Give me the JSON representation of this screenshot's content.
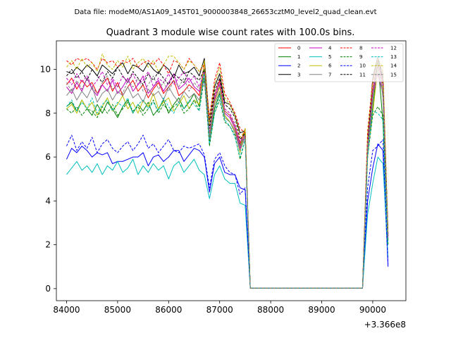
{
  "figure": {
    "suptitle": "Data file: modeM0/AS1A09_145T01_9000003848_26653cztM0_level2_quad_clean.evt",
    "title": "Quadrant 3 module wise count rates with 100.0s bins."
  },
  "chart_data": {
    "type": "line",
    "title": "Quadrant 3 module wise count rates with 100.0s bins.",
    "xlabel": "",
    "ylabel": "",
    "x_offset_label": "+3.366e8",
    "xlim": [
      83800,
      90650
    ],
    "ylim": [
      -0.55,
      11.3
    ],
    "xticks": [
      84000,
      85000,
      86000,
      87000,
      88000,
      89000,
      90000
    ],
    "xtick_labels": [
      "84000",
      "85000",
      "86000",
      "87000",
      "88000",
      "89000",
      "90000"
    ],
    "yticks": [
      0,
      2,
      4,
      6,
      8,
      10
    ],
    "ytick_labels": [
      "0",
      "2",
      "4",
      "6",
      "8",
      "10"
    ],
    "grid": false,
    "legend_position": "top-right",
    "legend_columns": 4,
    "x": [
      84000,
      84100,
      84200,
      84300,
      84400,
      84500,
      84600,
      84700,
      84800,
      84900,
      85000,
      85100,
      85200,
      85300,
      85400,
      85500,
      85600,
      85700,
      85800,
      85900,
      86000,
      86100,
      86200,
      86300,
      86400,
      86500,
      86600,
      86700,
      86800,
      86900,
      87000,
      87100,
      87200,
      87300,
      87400,
      87500,
      87600,
      87700,
      87800,
      87900,
      88000,
      88100,
      88200,
      88300,
      88400,
      88500,
      88600,
      88700,
      88800,
      88900,
      89000,
      89100,
      89200,
      89300,
      89400,
      89500,
      89600,
      89700,
      89800,
      89900,
      90000,
      90100,
      90200,
      90300
    ],
    "series": [
      {
        "name": "0",
        "color": "#ff0000",
        "dash": "solid",
        "values": [
          9.3,
          9.6,
          9.1,
          9.5,
          9.2,
          9.4,
          8.9,
          9.3,
          9.6,
          9.0,
          9.4,
          8.8,
          9.2,
          9.5,
          9.0,
          9.3,
          8.7,
          9.1,
          9.4,
          8.9,
          9.2,
          9.5,
          8.8,
          9.0,
          9.3,
          9.1,
          8.8,
          10.3,
          7.0,
          8.8,
          9.5,
          8.1,
          7.9,
          7.4,
          6.6,
          7.3,
          0.02,
          0.02,
          0.02,
          0.02,
          0.02,
          0.02,
          0.02,
          0.02,
          0.02,
          0.02,
          0.02,
          0.02,
          0.02,
          0.02,
          0.02,
          0.02,
          0.02,
          0.02,
          0.02,
          0.02,
          0.02,
          0.02,
          0.02,
          6.8,
          9.0,
          10.4,
          9.3,
          2.4
        ]
      },
      {
        "name": "1",
        "color": "#008000",
        "dash": "solid",
        "values": [
          8.3,
          8.5,
          8.1,
          8.6,
          8.2,
          7.9,
          8.4,
          8.0,
          8.5,
          8.2,
          7.8,
          8.3,
          8.6,
          8.0,
          8.4,
          8.1,
          8.5,
          7.9,
          8.2,
          8.6,
          8.0,
          8.4,
          8.7,
          8.2,
          8.5,
          8.9,
          8.3,
          10.0,
          6.6,
          8.2,
          8.9,
          7.9,
          7.6,
          7.2,
          6.5,
          7.1,
          0.02,
          0.02,
          0.02,
          0.02,
          0.02,
          0.02,
          0.02,
          0.02,
          0.02,
          0.02,
          0.02,
          0.02,
          0.02,
          0.02,
          0.02,
          0.02,
          0.02,
          0.02,
          0.02,
          0.02,
          0.02,
          0.02,
          0.02,
          6.3,
          8.2,
          10.4,
          7.6,
          2.0
        ]
      },
      {
        "name": "2",
        "color": "#0000ff",
        "dash": "solid",
        "values": [
          5.9,
          6.4,
          6.2,
          6.5,
          6.3,
          6.0,
          6.2,
          6.1,
          6.2,
          5.7,
          5.8,
          5.8,
          5.9,
          6.0,
          6.0,
          6.2,
          5.6,
          6.0,
          6.1,
          5.8,
          6.0,
          6.3,
          6.3,
          5.8,
          6.1,
          6.4,
          6.3,
          6.0,
          4.4,
          5.7,
          6.0,
          5.3,
          5.2,
          5.2,
          4.6,
          4.5,
          0.02,
          0.02,
          0.02,
          0.02,
          0.02,
          0.02,
          0.02,
          0.02,
          0.02,
          0.02,
          0.02,
          0.02,
          0.02,
          0.02,
          0.02,
          0.02,
          0.02,
          0.02,
          0.02,
          0.02,
          0.02,
          0.02,
          0.02,
          4.0,
          5.5,
          6.6,
          6.3,
          1.0
        ]
      },
      {
        "name": "3",
        "color": "#000000",
        "dash": "solid",
        "values": [
          9.9,
          9.8,
          10.1,
          9.9,
          10.2,
          10.0,
          9.7,
          10.2,
          10.0,
          9.8,
          10.1,
          10.3,
          9.8,
          10.2,
          10.1,
          9.9,
          10.3,
          10.0,
          9.8,
          10.2,
          10.0,
          9.6,
          10.2,
          9.8,
          9.9,
          10.1,
          9.7,
          10.5,
          7.6,
          9.2,
          9.8,
          8.5,
          8.4,
          7.9,
          7.1,
          7.2,
          0.02,
          0.02,
          0.02,
          0.02,
          0.02,
          0.02,
          0.02,
          0.02,
          0.02,
          0.02,
          0.02,
          0.02,
          0.02,
          0.02,
          0.02,
          0.02,
          0.02,
          0.02,
          0.02,
          0.02,
          0.02,
          0.02,
          0.02,
          6.6,
          9.6,
          10.6,
          9.5,
          2.5
        ]
      },
      {
        "name": "4",
        "color": "#c000c0",
        "dash": "solid",
        "values": [
          9.2,
          8.9,
          9.4,
          9.0,
          9.6,
          9.1,
          8.8,
          9.3,
          9.0,
          9.5,
          8.9,
          9.2,
          9.6,
          9.0,
          9.3,
          9.7,
          8.9,
          9.2,
          9.5,
          9.0,
          9.4,
          9.8,
          9.1,
          9.3,
          9.6,
          9.2,
          9.0,
          9.5,
          7.0,
          8.6,
          9.3,
          8.0,
          7.8,
          7.3,
          6.4,
          7.0,
          0.02,
          0.02,
          0.02,
          0.02,
          0.02,
          0.02,
          0.02,
          0.02,
          0.02,
          0.02,
          0.02,
          0.02,
          0.02,
          0.02,
          0.02,
          0.02,
          0.02,
          0.02,
          0.02,
          0.02,
          0.02,
          0.02,
          0.02,
          6.4,
          8.8,
          9.8,
          8.9,
          2.3
        ]
      },
      {
        "name": "5",
        "color": "#00bfbf",
        "dash": "solid",
        "values": [
          5.2,
          5.5,
          5.8,
          5.4,
          5.6,
          5.3,
          5.7,
          5.2,
          5.6,
          5.4,
          5.8,
          5.3,
          5.5,
          5.9,
          5.2,
          5.6,
          5.3,
          5.7,
          5.4,
          5.6,
          5.0,
          5.6,
          5.8,
          5.3,
          5.6,
          5.9,
          5.4,
          5.2,
          4.1,
          5.2,
          5.6,
          5.0,
          4.8,
          4.8,
          3.9,
          3.8,
          0.02,
          0.02,
          0.02,
          0.02,
          0.02,
          0.02,
          0.02,
          0.02,
          0.02,
          0.02,
          0.02,
          0.02,
          0.02,
          0.02,
          0.02,
          0.02,
          0.02,
          0.02,
          0.02,
          0.02,
          0.02,
          0.02,
          0.02,
          3.4,
          4.8,
          6.0,
          5.7,
          1.4
        ]
      },
      {
        "name": "6",
        "color": "#bfbf00",
        "dash": "solid",
        "values": [
          8.2,
          8.4,
          8.0,
          8.6,
          8.2,
          8.5,
          7.9,
          8.3,
          8.7,
          8.1,
          8.4,
          8.8,
          8.2,
          8.5,
          8.0,
          8.6,
          8.3,
          8.9,
          8.2,
          8.5,
          8.7,
          8.1,
          8.4,
          8.8,
          8.2,
          8.6,
          8.4,
          10.4,
          6.9,
          8.5,
          9.2,
          7.9,
          7.6,
          7.2,
          6.2,
          7.3,
          0.02,
          0.02,
          0.02,
          0.02,
          0.02,
          0.02,
          0.02,
          0.02,
          0.02,
          0.02,
          0.02,
          0.02,
          0.02,
          0.02,
          0.02,
          0.02,
          0.02,
          0.02,
          0.02,
          0.02,
          0.02,
          0.02,
          0.02,
          6.1,
          8.0,
          10.1,
          9.0,
          2.2
        ]
      },
      {
        "name": "7",
        "color": "#808080",
        "dash": "solid",
        "values": [
          8.8,
          9.1,
          8.6,
          9.0,
          8.7,
          9.2,
          8.5,
          8.9,
          9.1,
          8.6,
          9.0,
          8.8,
          9.2,
          8.7,
          8.9,
          8.5,
          9.1,
          8.8,
          9.0,
          8.6,
          9.2,
          8.8,
          8.5,
          9.0,
          8.7,
          8.9,
          8.6,
          9.6,
          6.8,
          8.4,
          9.0,
          7.8,
          7.6,
          7.1,
          6.3,
          6.9,
          0.02,
          0.02,
          0.02,
          0.02,
          0.02,
          0.02,
          0.02,
          0.02,
          0.02,
          0.02,
          0.02,
          0.02,
          0.02,
          0.02,
          0.02,
          0.02,
          0.02,
          0.02,
          0.02,
          0.02,
          0.02,
          0.02,
          0.02,
          6.2,
          8.6,
          10.6,
          8.7,
          2.2
        ]
      },
      {
        "name": "8",
        "color": "#ff0000",
        "dash": "dashed",
        "values": [
          10.4,
          10.2,
          10.5,
          10.4,
          10.5,
          10.3,
          10.0,
          10.5,
          10.3,
          10.4,
          10.1,
          10.4,
          10.3,
          10.5,
          10.1,
          10.3,
          10.4,
          10.2,
          10.5,
          10.2,
          9.8,
          10.4,
          10.3,
          10.0,
          10.5,
          10.2,
          9.9,
          10.2,
          7.8,
          9.5,
          10.3,
          8.9,
          8.5,
          8.0,
          7.3,
          7.1,
          0.02,
          0.02,
          0.02,
          0.02,
          0.02,
          0.02,
          0.02,
          0.02,
          0.02,
          0.02,
          0.02,
          0.02,
          0.02,
          0.02,
          0.02,
          0.02,
          0.02,
          0.02,
          0.02,
          0.02,
          0.02,
          0.02,
          0.02,
          7.2,
          9.5,
          10.4,
          9.9,
          2.5
        ]
      },
      {
        "name": "9",
        "color": "#008000",
        "dash": "dashed",
        "values": [
          8.2,
          8.0,
          8.3,
          7.9,
          8.2,
          8.1,
          7.8,
          8.3,
          8.0,
          8.4,
          7.9,
          8.2,
          8.5,
          8.1,
          8.3,
          7.9,
          8.2,
          8.6,
          8.0,
          8.4,
          8.1,
          8.3,
          8.5,
          8.0,
          8.2,
          8.6,
          8.1,
          9.6,
          6.5,
          8.0,
          8.6,
          7.6,
          7.4,
          7.0,
          5.9,
          6.8,
          0.02,
          0.02,
          0.02,
          0.02,
          0.02,
          0.02,
          0.02,
          0.02,
          0.02,
          0.02,
          0.02,
          0.02,
          0.02,
          0.02,
          0.02,
          0.02,
          0.02,
          0.02,
          0.02,
          0.02,
          0.02,
          0.02,
          0.02,
          6.0,
          7.9,
          8.3,
          7.9,
          2.0
        ]
      },
      {
        "name": "10",
        "color": "#0000ff",
        "dash": "dashed",
        "values": [
          6.5,
          7.0,
          6.3,
          6.7,
          6.4,
          6.9,
          6.2,
          6.6,
          6.8,
          6.4,
          6.2,
          6.5,
          6.7,
          6.3,
          6.6,
          7.0,
          6.4,
          6.6,
          6.2,
          6.5,
          6.8,
          6.3,
          6.2,
          6.5,
          6.4,
          6.5,
          6.6,
          6.1,
          4.6,
          5.9,
          6.2,
          5.6,
          5.3,
          5.2,
          4.3,
          4.6,
          0.02,
          0.02,
          0.02,
          0.02,
          0.02,
          0.02,
          0.02,
          0.02,
          0.02,
          0.02,
          0.02,
          0.02,
          0.02,
          0.02,
          0.02,
          0.02,
          0.02,
          0.02,
          0.02,
          0.02,
          0.02,
          0.02,
          0.02,
          4.6,
          6.3,
          6.5,
          6.8,
          1.1
        ]
      },
      {
        "name": "11",
        "color": "#000000",
        "dash": "dashed",
        "values": [
          9.7,
          10.0,
          9.6,
          9.9,
          9.5,
          10.0,
          9.7,
          9.4,
          9.9,
          9.6,
          10.1,
          9.7,
          9.4,
          9.9,
          9.6,
          9.3,
          9.8,
          9.5,
          9.9,
          9.6,
          9.3,
          9.8,
          9.6,
          9.4,
          9.9,
          9.7,
          9.5,
          10.0,
          7.3,
          9.0,
          9.6,
          8.4,
          8.2,
          7.8,
          6.8,
          7.1,
          0.02,
          0.02,
          0.02,
          0.02,
          0.02,
          0.02,
          0.02,
          0.02,
          0.02,
          0.02,
          0.02,
          0.02,
          0.02,
          0.02,
          0.02,
          0.02,
          0.02,
          0.02,
          0.02,
          0.02,
          0.02,
          0.02,
          0.02,
          6.8,
          9.3,
          10.5,
          9.7,
          2.4
        ]
      },
      {
        "name": "12",
        "color": "#c000c0",
        "dash": "dashed",
        "values": [
          9.6,
          9.3,
          9.8,
          9.4,
          9.7,
          9.2,
          9.5,
          9.9,
          9.3,
          9.6,
          9.2,
          9.7,
          9.4,
          9.8,
          9.3,
          9.5,
          9.9,
          9.2,
          9.6,
          9.4,
          9.8,
          9.3,
          9.6,
          9.9,
          9.4,
          9.7,
          9.2,
          9.9,
          7.1,
          8.8,
          9.4,
          8.2,
          8.0,
          7.5,
          6.7,
          7.0,
          0.02,
          0.02,
          0.02,
          0.02,
          0.02,
          0.02,
          0.02,
          0.02,
          0.02,
          0.02,
          0.02,
          0.02,
          0.02,
          0.02,
          0.02,
          0.02,
          0.02,
          0.02,
          0.02,
          0.02,
          0.02,
          0.02,
          0.02,
          6.6,
          9.0,
          10.2,
          9.4,
          2.3
        ]
      },
      {
        "name": "13",
        "color": "#00bfbf",
        "dash": "dashed",
        "values": [
          8.3,
          8.6,
          8.1,
          8.5,
          8.2,
          8.7,
          8.0,
          8.4,
          8.6,
          8.1,
          8.5,
          8.3,
          8.7,
          8.0,
          8.4,
          8.6,
          8.2,
          8.5,
          8.1,
          8.7,
          8.3,
          8.0,
          8.5,
          8.2,
          8.6,
          8.4,
          8.1,
          9.8,
          6.6,
          8.0,
          8.8,
          7.7,
          7.4,
          6.9,
          6.0,
          6.8,
          0.02,
          0.02,
          0.02,
          0.02,
          0.02,
          0.02,
          0.02,
          0.02,
          0.02,
          0.02,
          0.02,
          0.02,
          0.02,
          0.02,
          0.02,
          0.02,
          0.02,
          0.02,
          0.02,
          0.02,
          0.02,
          0.02,
          0.02,
          6.0,
          8.1,
          8.0,
          7.7,
          2.0
        ]
      },
      {
        "name": "14",
        "color": "#bfbf00",
        "dash": "dashed",
        "values": [
          10.1,
          10.4,
          10.0,
          10.5,
          10.1,
          10.3,
          9.9,
          10.7,
          10.2,
          10.0,
          10.4,
          10.1,
          10.6,
          10.0,
          10.3,
          10.5,
          10.1,
          10.4,
          9.9,
          10.2,
          10.6,
          10.6,
          10.3,
          10.0,
          10.4,
          10.2,
          9.9,
          10.3,
          7.5,
          9.3,
          10.1,
          8.7,
          8.4,
          7.9,
          6.9,
          7.2,
          0.02,
          0.02,
          0.02,
          0.02,
          0.02,
          0.02,
          0.02,
          0.02,
          0.02,
          0.02,
          0.02,
          0.02,
          0.02,
          0.02,
          0.02,
          0.02,
          0.02,
          0.02,
          0.02,
          0.02,
          0.02,
          0.02,
          0.02,
          7.0,
          9.4,
          10.5,
          10.1,
          2.5
        ]
      },
      {
        "name": "15",
        "color": "#808080",
        "dash": "dashed",
        "values": [
          9.4,
          9.0,
          9.5,
          9.1,
          9.6,
          9.2,
          8.9,
          9.4,
          9.7,
          9.1,
          9.3,
          8.9,
          9.5,
          9.2,
          9.6,
          9.0,
          9.3,
          9.7,
          9.1,
          9.4,
          9.0,
          9.5,
          9.2,
          9.6,
          9.0,
          9.4,
          9.1,
          9.8,
          7.0,
          8.7,
          9.3,
          8.1,
          7.9,
          7.4,
          6.5,
          7.0,
          0.02,
          0.02,
          0.02,
          0.02,
          0.02,
          0.02,
          0.02,
          0.02,
          0.02,
          0.02,
          0.02,
          0.02,
          0.02,
          0.02,
          0.02,
          0.02,
          0.02,
          0.02,
          0.02,
          0.02,
          0.02,
          0.02,
          0.02,
          6.5,
          8.8,
          10.0,
          9.2,
          2.3
        ]
      }
    ]
  }
}
